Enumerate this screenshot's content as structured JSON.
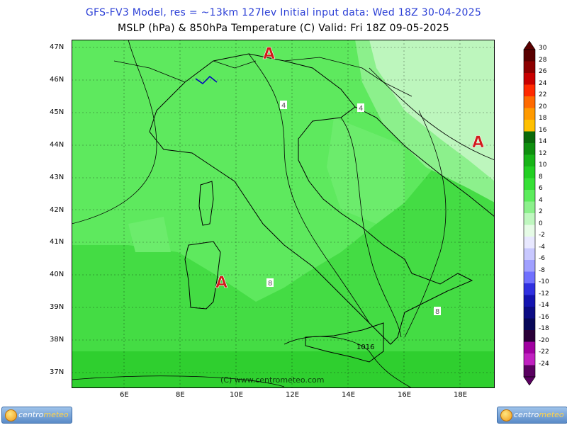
{
  "header": {
    "line1": "GFS-FV3 Model, res = ~13km 127lev   Initial input data: Wed 18Z 30-04-2025",
    "line2": "MSLP (hPa) & 850hPa Temperature (C)  Valid: Fri 18Z 09-05-2025"
  },
  "axes": {
    "lat_labels": [
      "47N",
      "46N",
      "45N",
      "44N",
      "43N",
      "42N",
      "41N",
      "40N",
      "39N",
      "38N",
      "37N"
    ],
    "lon_labels": [
      "6E",
      "8E",
      "10E",
      "12E",
      "14E",
      "16E",
      "18E"
    ]
  },
  "map_labels": {
    "highs": [
      "A",
      "A",
      "A"
    ],
    "isobar_4a": "4",
    "isobar_4b": "4",
    "isobar_8a": "8",
    "isobar_8b": "8",
    "isobar_1016": "1016",
    "watermark": "(C) www.centrometeo.com"
  },
  "colorbar": {
    "ticks": [
      "30",
      "28",
      "26",
      "24",
      "22",
      "20",
      "18",
      "16",
      "14",
      "12",
      "10",
      "8",
      "6",
      "4",
      "2",
      "0",
      "-2",
      "-4",
      "-6",
      "-8",
      "-10",
      "-12",
      "-14",
      "-16",
      "-18",
      "-20",
      "-22",
      "-24"
    ],
    "colors": [
      "#5a0000",
      "#8c0000",
      "#c80000",
      "#ff2a00",
      "#ff6a00",
      "#ff9a00",
      "#ffc000",
      "#0a6a0a",
      "#0f8f0f",
      "#18b418",
      "#22cf22",
      "#36e036",
      "#5cec5c",
      "#8cf08c",
      "#bff7bf",
      "#e6fbe6",
      "#e8e8ff",
      "#c8c8ff",
      "#a0a0ff",
      "#7070ff",
      "#3030e0",
      "#1414b0",
      "#0c0c84",
      "#080858",
      "#2a0038",
      "#a000a0",
      "#c020c0",
      "#5a0060"
    ]
  },
  "logo": {
    "brand_a": "centro",
    "brand_b": "meteo"
  },
  "colors": {
    "title_blue": "#2b3fd6",
    "high_marker": "#d11b1b",
    "sea_green": "#44dc44",
    "land_green": "#6aec6a"
  }
}
